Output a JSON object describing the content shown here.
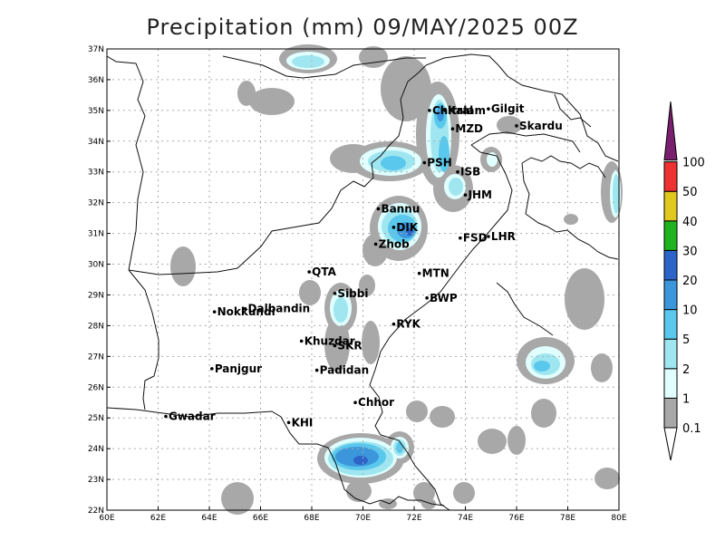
{
  "title": "Precipitation (mm) 09/MAY/2025 00Z",
  "map": {
    "x_ticks": [
      "60E",
      "62E",
      "64E",
      "66E",
      "68E",
      "70E",
      "72E",
      "74E",
      "76E",
      "78E",
      "80E"
    ],
    "y_ticks": [
      "22N",
      "23N",
      "24N",
      "25N",
      "26N",
      "27N",
      "28N",
      "29N",
      "30N",
      "31N",
      "32N",
      "33N",
      "34N",
      "35N",
      "36N",
      "37N"
    ],
    "lon_range": [
      60,
      80
    ],
    "lat_range": [
      22,
      37
    ],
    "cities": [
      {
        "name": "Chitral",
        "lon": 72.6,
        "lat": 35.0
      },
      {
        "name": "Gilgit",
        "lon": 74.9,
        "lat": 35.05
      },
      {
        "name": "Kalam",
        "lon": 73.2,
        "lat": 35.0
      },
      {
        "name": "Skardu",
        "lon": 76.0,
        "lat": 34.5
      },
      {
        "name": "MZD",
        "lon": 73.5,
        "lat": 34.4
      },
      {
        "name": "PSH",
        "lon": 72.4,
        "lat": 33.3
      },
      {
        "name": "ISB",
        "lon": 73.7,
        "lat": 33.0
      },
      {
        "name": "JHM",
        "lon": 74.0,
        "lat": 32.25
      },
      {
        "name": "Bannu",
        "lon": 70.6,
        "lat": 31.8
      },
      {
        "name": "DIK",
        "lon": 71.2,
        "lat": 31.2
      },
      {
        "name": "FSD",
        "lon": 73.8,
        "lat": 30.85
      },
      {
        "name": "LHR",
        "lon": 74.9,
        "lat": 30.9
      },
      {
        "name": "Zhob",
        "lon": 70.5,
        "lat": 30.65
      },
      {
        "name": "QTA",
        "lon": 67.9,
        "lat": 29.75
      },
      {
        "name": "MTN",
        "lon": 72.2,
        "lat": 29.7
      },
      {
        "name": "Sibbi",
        "lon": 68.9,
        "lat": 29.05
      },
      {
        "name": "BWP",
        "lon": 72.5,
        "lat": 28.9
      },
      {
        "name": "Nokkundi",
        "lon": 64.2,
        "lat": 28.45
      },
      {
        "name": "Dalbandin",
        "lon": 65.4,
        "lat": 28.55
      },
      {
        "name": "RYK",
        "lon": 71.2,
        "lat": 28.05
      },
      {
        "name": "Khuzdar",
        "lon": 67.6,
        "lat": 27.5
      },
      {
        "name": "SKR",
        "lon": 68.9,
        "lat": 27.35
      },
      {
        "name": "Padidan",
        "lon": 68.2,
        "lat": 26.55
      },
      {
        "name": "Panjgur",
        "lon": 64.1,
        "lat": 26.6
      },
      {
        "name": "Chhor",
        "lon": 69.7,
        "lat": 25.5
      },
      {
        "name": "Gwadar",
        "lon": 62.3,
        "lat": 25.05
      },
      {
        "name": "KHI",
        "lon": 67.1,
        "lat": 24.85
      }
    ]
  },
  "legend": {
    "levels": [
      "0.1",
      "1",
      "2",
      "5",
      "10",
      "20",
      "30",
      "40",
      "50",
      "100"
    ],
    "colors": [
      "#a8a8a8",
      "#e1ffff",
      "#9fe6f0",
      "#5ac8ec",
      "#3c96dc",
      "#2c64c8",
      "#1fb31f",
      "#e0c81e",
      "#ee3232",
      "#7a1f6e"
    ]
  }
}
